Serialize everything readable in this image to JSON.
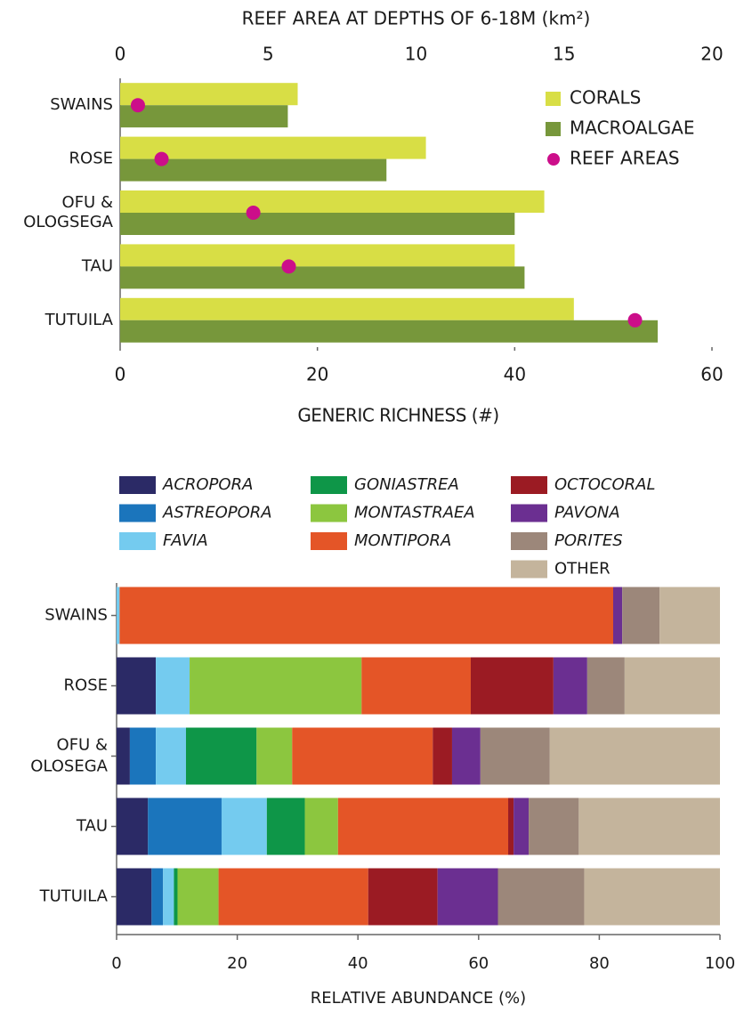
{
  "chart_data": [
    {
      "type": "bar",
      "orientation": "horizontal",
      "x2label": "REEF AREA AT DEPTHS OF 6-18M (km²)",
      "xlabel": "GENERIC RICHNESS (#)",
      "categories": [
        "SWAINS",
        "ROSE",
        "OFU & OLOGSEGA",
        "TAU",
        "TUTUILA"
      ],
      "series": [
        {
          "name": "CORALS",
          "color": "#d8de45",
          "values": [
            18,
            31,
            43,
            40,
            46
          ]
        },
        {
          "name": "MACROALGAE",
          "color": "#77973b",
          "values": [
            17,
            27,
            40,
            41,
            54.5
          ]
        },
        {
          "name": "REEF AREAS",
          "color": "#cc0e8a",
          "axis": "x2",
          "marker": "dot",
          "values": [
            0.6,
            1.4,
            4.5,
            5.7,
            17.4
          ]
        }
      ],
      "xlim": [
        0,
        60
      ],
      "xticks": [
        0,
        20,
        40,
        60
      ],
      "x2lim": [
        0,
        20
      ],
      "x2ticks": [
        0,
        5,
        10,
        15,
        20
      ],
      "legend": "upper right"
    },
    {
      "type": "stacked_bar",
      "orientation": "horizontal",
      "xlabel": "RELATIVE ABUNDANCE (%)",
      "categories": [
        "SWAINS",
        "ROSE",
        "OFU & OLOSEGA",
        "TAU",
        "TUTUILA"
      ],
      "series": [
        {
          "name": "ACROPORA",
          "italic": true,
          "color": "#2b2a66",
          "values": [
            0,
            6.5,
            2.2,
            5.2,
            5.8
          ]
        },
        {
          "name": "ASTREOPORA",
          "italic": true,
          "color": "#1b75bc",
          "values": [
            0,
            0,
            4.3,
            12.2,
            1.9
          ]
        },
        {
          "name": "FAVIA",
          "italic": true,
          "color": "#74cbef",
          "values": [
            0.5,
            5.6,
            5.0,
            7.5,
            1.8
          ]
        },
        {
          "name": "GONIASTREA",
          "italic": true,
          "color": "#0e9648",
          "values": [
            0,
            0,
            11.7,
            6.3,
            0.6
          ]
        },
        {
          "name": "MONTASTRAEA",
          "italic": true,
          "color": "#8cc63f",
          "values": [
            0,
            28.5,
            5.9,
            5.5,
            6.8
          ]
        },
        {
          "name": "MONTIPORA",
          "italic": true,
          "color": "#e45527",
          "values": [
            81.8,
            18.1,
            23.3,
            28.2,
            24.8
          ]
        },
        {
          "name": "OCTOCORAL",
          "italic": true,
          "color": "#9b1b23",
          "values": [
            0,
            13.7,
            3.2,
            0.9,
            11.5
          ]
        },
        {
          "name": "PAVONA",
          "italic": true,
          "color": "#6b2f91",
          "values": [
            1.5,
            5.6,
            4.7,
            2.5,
            10.0
          ]
        },
        {
          "name": "PORITES",
          "italic": true,
          "color": "#9c877a",
          "values": [
            6.2,
            6.2,
            11.5,
            8.3,
            14.3
          ]
        },
        {
          "name": "OTHER",
          "color": "#c4b49c",
          "values": [
            10.0,
            15.8,
            28.2,
            23.4,
            22.5
          ]
        }
      ],
      "xlim": [
        0,
        100
      ],
      "xticks": [
        0,
        20,
        40,
        60,
        80,
        100
      ],
      "legend": "top"
    }
  ]
}
